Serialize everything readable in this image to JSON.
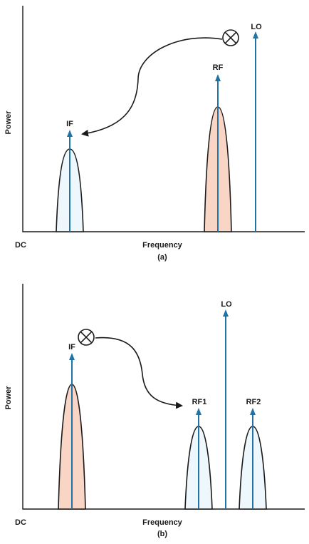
{
  "panel_a": {
    "ylabel": "Power",
    "xlabel": "Frequency",
    "origin": "DC",
    "caption": "(a)",
    "signals": {
      "if": "IF",
      "rf": "RF",
      "lo": "LO"
    },
    "mixer_icon": "mixer-x-circle-icon",
    "colors": {
      "if_fill": "#eef7fc",
      "rf_fill": "#f9d5c6",
      "arrow": "#1f73a8"
    }
  },
  "panel_b": {
    "ylabel": "Power",
    "xlabel": "Frequency",
    "origin": "DC",
    "caption": "(b)",
    "signals": {
      "if": "IF",
      "rf1": "RF1",
      "lo": "LO",
      "rf2": "RF2"
    },
    "mixer_icon": "mixer-x-circle-icon",
    "colors": {
      "if_fill": "#f9d5c6",
      "rf_fill": "#eef7fc",
      "arrow": "#1f73a8"
    }
  }
}
